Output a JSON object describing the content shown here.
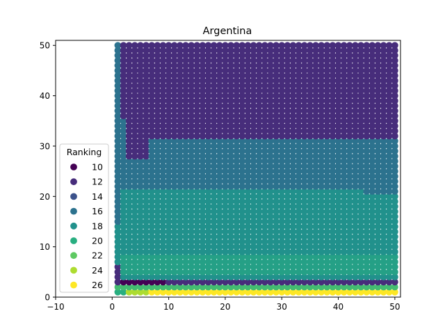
{
  "chart_data": {
    "type": "scatter",
    "title": "Argentina",
    "xlabel": "",
    "ylabel": "",
    "xlim": [
      -10,
      51
    ],
    "ylim": [
      0,
      51
    ],
    "x_ticks": [
      -10,
      0,
      10,
      20,
      30,
      40,
      50
    ],
    "y_ticks": [
      0,
      10,
      20,
      30,
      40,
      50
    ],
    "x_tick_labels": [
      "−10",
      "0",
      "10",
      "20",
      "30",
      "40",
      "50"
    ],
    "y_tick_labels": [
      "0",
      "10",
      "20",
      "30",
      "40",
      "50"
    ],
    "grid": false,
    "colormap": "viridis",
    "point_grid": {
      "x_range": [
        1,
        50
      ],
      "y_range": [
        1,
        50
      ],
      "step": 1
    },
    "note_values": "Each point's value is the Ranking (color) shown for grid position (x, y).",
    "legend": {
      "title": "Ranking",
      "placement": "lower-left",
      "entries": [
        {
          "label": "10",
          "value": 10,
          "color": "#440154"
        },
        {
          "label": "12",
          "value": 12,
          "color": "#472d7b"
        },
        {
          "label": "14",
          "value": 14,
          "color": "#3b528b"
        },
        {
          "label": "16",
          "value": 16,
          "color": "#2c728e"
        },
        {
          "label": "18",
          "value": 18,
          "color": "#21918c"
        },
        {
          "label": "20",
          "value": 20,
          "color": "#28ae80"
        },
        {
          "label": "22",
          "value": 22,
          "color": "#5ec962"
        },
        {
          "label": "24",
          "value": 24,
          "color": "#addc30"
        },
        {
          "label": "26",
          "value": 26,
          "color": "#fde725"
        }
      ]
    },
    "regions": [
      {
        "rule": "y >= 36 or (y >= 32 and x >= 7)",
        "value": 12
      },
      {
        "rule": "y in 22..35 and x >= 2",
        "value": 16
      },
      {
        "rule": "y in 9..21 and x >= 2",
        "value": 18
      },
      {
        "rule": "y in 5..8",
        "value": 19
      },
      {
        "rule": "y == 4",
        "value": 18
      },
      {
        "rule": "y == 3",
        "value": 12
      },
      {
        "rule": "y == 2",
        "value": 21
      },
      {
        "rule": "y == 1",
        "value": 26
      },
      {
        "rule": "x == 1",
        "value": 16
      }
    ]
  }
}
